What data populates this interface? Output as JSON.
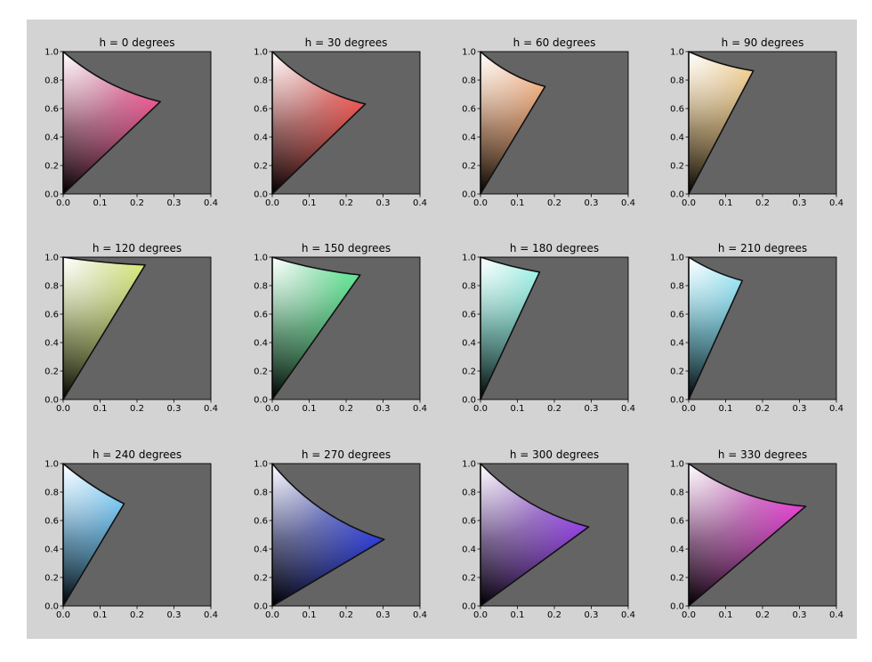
{
  "figure": {
    "background": "#d3d3d3",
    "axes_background": "#646464",
    "outline_color": "#111111",
    "xticks": [
      "0.0",
      "0.1",
      "0.2",
      "0.3",
      "0.4"
    ],
    "yticks": [
      "0.0",
      "0.2",
      "0.4",
      "0.6",
      "0.8",
      "1.0"
    ]
  },
  "chart_data": [
    {
      "type": "area",
      "title": "h = 0 degrees",
      "hue": 0,
      "xlim": [
        0,
        0.4
      ],
      "ylim": [
        0,
        1
      ],
      "cusp": {
        "x": 0.263,
        "y": 0.648
      },
      "curvature": 0.03,
      "cusp_color": "#e8337a"
    },
    {
      "type": "area",
      "title": "h = 30 degrees",
      "hue": 30,
      "xlim": [
        0,
        0.4
      ],
      "ylim": [
        0,
        1
      ],
      "cusp": {
        "x": 0.252,
        "y": 0.632
      },
      "curvature": 0.035,
      "cusp_color": "#ea2d28"
    },
    {
      "type": "area",
      "title": "h = 60 degrees",
      "hue": 60,
      "xlim": [
        0,
        0.4
      ],
      "ylim": [
        0,
        1
      ],
      "cusp": {
        "x": 0.175,
        "y": 0.755
      },
      "curvature": 0.02,
      "cusp_color": "#e67a30"
    },
    {
      "type": "area",
      "title": "h = 90 degrees",
      "hue": 90,
      "xlim": [
        0,
        0.4
      ],
      "ylim": [
        0,
        1
      ],
      "cusp": {
        "x": 0.175,
        "y": 0.865
      },
      "curvature": 0.01,
      "cusp_color": "#e8a93a"
    },
    {
      "type": "area",
      "title": "h = 120 degrees",
      "hue": 120,
      "xlim": [
        0,
        0.4
      ],
      "ylim": [
        0,
        1
      ],
      "cusp": {
        "x": 0.222,
        "y": 0.945
      },
      "curvature": 0.005,
      "cusp_color": "#c8e33a"
    },
    {
      "type": "area",
      "title": "h = 150 degrees",
      "hue": 150,
      "xlim": [
        0,
        0.4
      ],
      "ylim": [
        0,
        1
      ],
      "cusp": {
        "x": 0.238,
        "y": 0.875
      },
      "curvature": 0.01,
      "cusp_color": "#1fe06a"
    },
    {
      "type": "area",
      "title": "h = 180 degrees",
      "hue": 180,
      "xlim": [
        0,
        0.4
      ],
      "ylim": [
        0,
        1
      ],
      "cusp": {
        "x": 0.16,
        "y": 0.895
      },
      "curvature": 0.005,
      "cusp_color": "#3ae6cf"
    },
    {
      "type": "area",
      "title": "h = 210 degrees",
      "hue": 210,
      "xlim": [
        0,
        0.4
      ],
      "ylim": [
        0,
        1
      ],
      "cusp": {
        "x": 0.145,
        "y": 0.835
      },
      "curvature": 0.01,
      "cusp_color": "#26c5e6"
    },
    {
      "type": "area",
      "title": "h = 240 degrees",
      "hue": 240,
      "xlim": [
        0,
        0.4
      ],
      "ylim": [
        0,
        1
      ],
      "cusp": {
        "x": 0.165,
        "y": 0.718
      },
      "curvature": 0.01,
      "cusp_color": "#1f9de6"
    },
    {
      "type": "area",
      "title": "h = 270 degrees",
      "hue": 270,
      "xlim": [
        0,
        0.4
      ],
      "ylim": [
        0,
        1
      ],
      "cusp": {
        "x": 0.303,
        "y": 0.467
      },
      "curvature": 0.045,
      "cusp_color": "#2536dd"
    },
    {
      "type": "area",
      "title": "h = 300 degrees",
      "hue": 300,
      "xlim": [
        0,
        0.4
      ],
      "ylim": [
        0,
        1
      ],
      "cusp": {
        "x": 0.293,
        "y": 0.555
      },
      "curvature": 0.04,
      "cusp_color": "#8a2fe6"
    },
    {
      "type": "area",
      "title": "h = 330 degrees",
      "hue": 330,
      "xlim": [
        0,
        0.4
      ],
      "ylim": [
        0,
        1
      ],
      "cusp": {
        "x": 0.317,
        "y": 0.7
      },
      "curvature": 0.04,
      "cusp_color": "#e82cd3"
    }
  ]
}
